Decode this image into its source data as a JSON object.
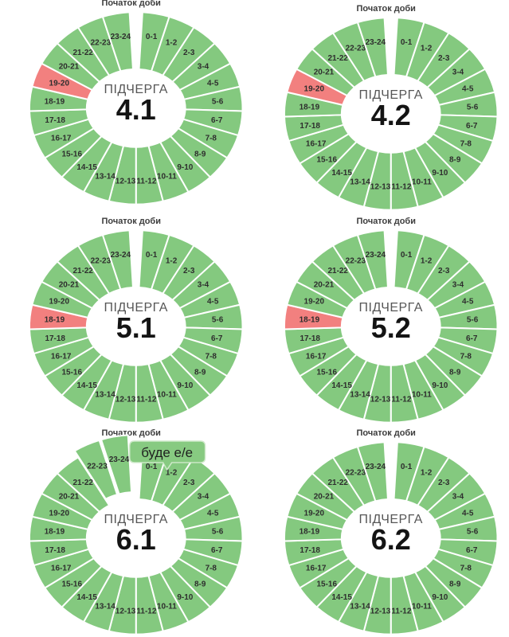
{
  "page": {
    "background": "#ffffff"
  },
  "chart_data": {
    "type": "pie",
    "subtype": "donut-grid",
    "grid": {
      "rows": 3,
      "cols": 2
    },
    "legend": "none",
    "slice_value_each": 1,
    "categories": [
      "0-1",
      "1-2",
      "2-3",
      "3-4",
      "4-5",
      "5-6",
      "6-7",
      "7-8",
      "8-9",
      "9-10",
      "10-11",
      "11-12",
      "12-13",
      "13-14",
      "14-15",
      "15-16",
      "16-17",
      "17-18",
      "18-19",
      "19-20",
      "20-21",
      "21-22",
      "22-23",
      "23-24"
    ],
    "colors": {
      "available": "#84c97f",
      "outage": "#f2807f",
      "slice_border": "#ffffff",
      "hour_label_text": "#2e2e2e",
      "center_label_text": "#565656",
      "center_value_text": "#141414",
      "title_text": "#3d3d3d",
      "tooltip_fill": "#87ca81",
      "tooltip_border": "#cfe9ca",
      "tooltip_text": "#1f1f1f"
    },
    "charts": [
      {
        "title": "Початок доби",
        "title_clipped": true,
        "center_label": "ПІДЧЕРГА",
        "center_value": "4.1",
        "red_hours": [
          "19-20"
        ],
        "exploded_hours": [],
        "tooltip": null
      },
      {
        "title": "Початок доби",
        "title_clipped": false,
        "center_label": "ПІДЧЕРГА",
        "center_value": "4.2",
        "red_hours": [
          "19-20"
        ],
        "exploded_hours": [],
        "tooltip": null
      },
      {
        "title": "Початок доби",
        "title_clipped": false,
        "center_label": "ПІДЧЕРГА",
        "center_value": "5.1",
        "red_hours": [
          "18-19"
        ],
        "exploded_hours": [],
        "tooltip": null
      },
      {
        "title": "Початок доби",
        "title_clipped": false,
        "center_label": "ПІДЧЕРГА",
        "center_value": "5.2",
        "red_hours": [
          "18-19"
        ],
        "exploded_hours": [],
        "tooltip": null
      },
      {
        "title": "Початок доби",
        "title_clipped": false,
        "center_label": "ПІДЧЕРГА",
        "center_value": "6.1",
        "red_hours": [],
        "exploded_hours": [
          "22-23",
          "23-24"
        ],
        "tooltip": {
          "text": "буде е/е"
        }
      },
      {
        "title": "Початок доби",
        "title_clipped": false,
        "center_label": "ПІДЧЕРГА",
        "center_value": "6.2",
        "red_hours": [],
        "exploded_hours": [],
        "tooltip": null
      }
    ]
  }
}
